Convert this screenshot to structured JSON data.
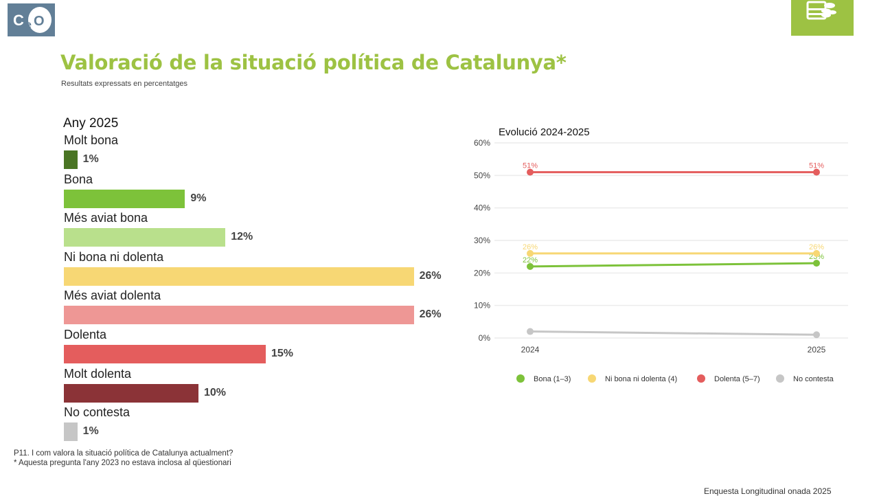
{
  "logo_text": "CeO",
  "title": "Valoració de la situació política de Catalunya*",
  "subtitle": "Resultats expressats en percentatges",
  "chart_data": [
    {
      "type": "bar",
      "orientation": "horizontal",
      "title": "Any 2025",
      "categories": [
        "Molt bona",
        "Bona",
        "Més aviat bona",
        "Ni bona ni dolenta",
        "Més aviat dolenta",
        "Dolenta",
        "Molt dolenta",
        "No contesta"
      ],
      "values": [
        1,
        9,
        12,
        26,
        26,
        15,
        10,
        1
      ],
      "labels": [
        "1%",
        "9%",
        "12%",
        "26%",
        "26%",
        "15%",
        "10%",
        "1%"
      ],
      "colors": [
        "#4a7524",
        "#7dc23a",
        "#b9e08c",
        "#f7d774",
        "#ee9795",
        "#e45d5d",
        "#8b3337",
        "#c6c6c6"
      ]
    },
    {
      "type": "line",
      "title": "Evolució 2024-2025",
      "x": [
        "2024",
        "2025"
      ],
      "ylim": [
        0,
        60
      ],
      "yticks": [
        "0%",
        "10%",
        "20%",
        "30%",
        "40%",
        "50%",
        "60%"
      ],
      "grid": true,
      "legend_position": "bottom",
      "series": [
        {
          "name": "Bona (1–3)",
          "values": [
            22,
            23
          ],
          "labels": [
            "22%",
            "23%"
          ],
          "color": "#7dc23a"
        },
        {
          "name": "Ni bona ni dolenta (4)",
          "values": [
            26,
            26
          ],
          "labels": [
            "26%",
            "26%"
          ],
          "color": "#f7d774"
        },
        {
          "name": "Dolenta (5–7)",
          "values": [
            51,
            51
          ],
          "labels": [
            "51%",
            "51%"
          ],
          "color": "#e45d5d"
        },
        {
          "name": "No contesta",
          "values": [
            2,
            1
          ],
          "labels": [],
          "color": "#c6c6c6"
        }
      ]
    }
  ],
  "footnotes": [
    "P11. I com valora la situació política de Catalunya actualment?",
    "* Aquesta pregunta l'any 2023 no estava inclosa al qüestionari"
  ],
  "source": "Enquesta Longitudinal onada 2025"
}
